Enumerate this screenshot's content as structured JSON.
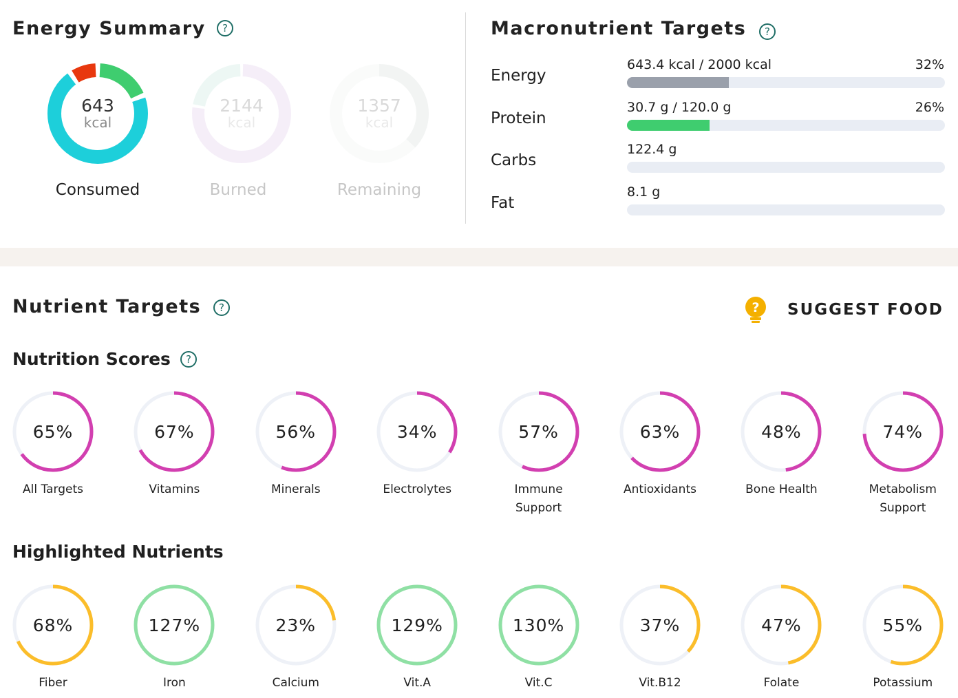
{
  "energy_summary": {
    "title": "Energy Summary",
    "help_icon": "question-circle-icon",
    "consumed": {
      "value": "643",
      "unit": "kcal",
      "label": "Consumed",
      "segments": [
        {
          "name": "protein",
          "fraction": 0.19,
          "color": "#3fcd6f"
        },
        {
          "name": "carbs",
          "fraction": 0.715,
          "color": "#1dcfda"
        },
        {
          "name": "fat",
          "fraction": 0.095,
          "color": "#e8380e"
        }
      ]
    },
    "burned": {
      "value": "2144",
      "unit": "kcal",
      "label": "Burned",
      "color": "#c9a7de",
      "color2": "#9fd7c8"
    },
    "remaining": {
      "value": "1357",
      "unit": "kcal",
      "label": "Remaining",
      "color": "#b9c4bf",
      "fraction": 0.37
    }
  },
  "macronutrient_targets": {
    "title": "Macronutrient Targets",
    "rows": [
      {
        "name": "Energy",
        "value": "643.4 kcal / 2000 kcal",
        "percent": "32%",
        "fraction": 0.32,
        "color": "#9aa0ab"
      },
      {
        "name": "Protein",
        "value": "30.7 g / 120.0 g",
        "percent": "26%",
        "fraction": 0.26,
        "color": "#3fcd6f"
      },
      {
        "name": "Carbs",
        "value": "122.4 g",
        "percent": "",
        "fraction": 0,
        "color": "#e9edf4"
      },
      {
        "name": "Fat",
        "value": "8.1 g",
        "percent": "",
        "fraction": 0,
        "color": "#e9edf4"
      }
    ]
  },
  "nutrient_targets": {
    "title": "Nutrient Targets",
    "suggest_food": "SUGGEST FOOD",
    "scores_title": "Nutrition Scores",
    "scores": [
      {
        "value": "65%",
        "fraction": 0.65,
        "label": "All Targets"
      },
      {
        "value": "67%",
        "fraction": 0.67,
        "label": "Vitamins"
      },
      {
        "value": "56%",
        "fraction": 0.56,
        "label": "Minerals"
      },
      {
        "value": "34%",
        "fraction": 0.34,
        "label": "Electrolytes"
      },
      {
        "value": "57%",
        "fraction": 0.57,
        "label": "Immune Support"
      },
      {
        "value": "63%",
        "fraction": 0.63,
        "label": "Antioxidants"
      },
      {
        "value": "48%",
        "fraction": 0.48,
        "label": "Bone Health"
      },
      {
        "value": "74%",
        "fraction": 0.74,
        "label": "Metabolism Support"
      }
    ],
    "highlighted_title": "Highlighted Nutrients",
    "highlighted": [
      {
        "value": "68%",
        "fraction": 0.68,
        "label": "Fiber",
        "color": "#fbbd2a"
      },
      {
        "value": "127%",
        "fraction": 1.27,
        "label": "Iron",
        "color": "#8fe0a4"
      },
      {
        "value": "23%",
        "fraction": 0.23,
        "label": "Calcium",
        "color": "#fbbd2a"
      },
      {
        "value": "129%",
        "fraction": 1.29,
        "label": "Vit.A",
        "color": "#8fe0a4"
      },
      {
        "value": "130%",
        "fraction": 1.3,
        "label": "Vit.C",
        "color": "#8fe0a4"
      },
      {
        "value": "37%",
        "fraction": 0.37,
        "label": "Vit.B12",
        "color": "#fbbd2a"
      },
      {
        "value": "47%",
        "fraction": 0.47,
        "label": "Folate",
        "color": "#fbbd2a"
      },
      {
        "value": "55%",
        "fraction": 0.55,
        "label": "Potassium",
        "color": "#fbbd2a"
      }
    ]
  },
  "colors": {
    "score_ring": "#d23fb0",
    "track": "#eef1f7",
    "accent": "#1f6e66",
    "lightbulb": "#f4b000"
  }
}
